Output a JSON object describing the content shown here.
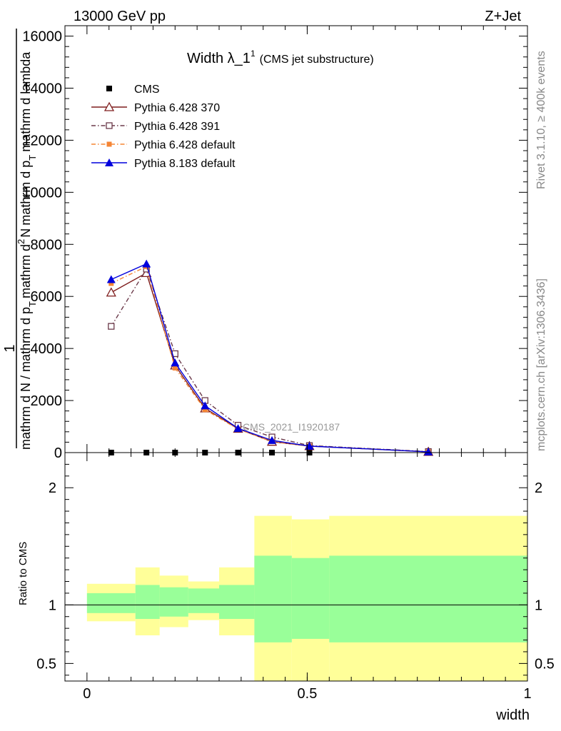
{
  "header": {
    "energy_label": "13000 GeV pp",
    "process_label": "Z+Jet",
    "side_top": "Rivet 3.1.10, ≥ 400k events",
    "side_bottom": "mcplots.cern.ch [arXiv:1306.3436]"
  },
  "chart_data": [
    {
      "type": "line",
      "title": "Width λ_1",
      "title_superscript": "1",
      "subtitle": "(CMS jet substructure)",
      "watermark": "CMS_2021_I1920187",
      "ylabel_parts": [
        "1",
        "mathrm d N / mathrm d p_T",
        "mathrm d^2 N / mathrm d p_T mathrm d lambda"
      ],
      "ylabel_lines": [
        "1",
        "mathrm d N / mathrm d p",
        "T",
        "mathrm d",
        "2",
        "N",
        "mathrm d p",
        "T",
        "mathrm d lambda"
      ],
      "xlim": [
        -0.05,
        1.0
      ],
      "ylim": [
        0,
        16400
      ],
      "yticks": [
        0,
        2000,
        4000,
        6000,
        8000,
        10000,
        12000,
        14000,
        16000
      ],
      "ytick_labels": [
        "0",
        "2000",
        "4000",
        "6000",
        "8000",
        "10000",
        "12000",
        "14000",
        "16000"
      ],
      "series": [
        {
          "name": "CMS",
          "color": "#000000",
          "marker": "square",
          "dash": "none",
          "x": [
            0.055,
            0.135,
            0.2,
            0.268,
            0.343,
            0.42,
            0.505,
            0.775
          ],
          "y": [
            0,
            0,
            0,
            0,
            0,
            0,
            0,
            0
          ]
        },
        {
          "name": "Pythia 6.428 370",
          "color": "#7f1d1d",
          "marker": "triangle-open",
          "dash": "none",
          "x": [
            0.055,
            0.135,
            0.2,
            0.268,
            0.343,
            0.42,
            0.505,
            0.775
          ],
          "y": [
            6150,
            6900,
            3350,
            1700,
            920,
            420,
            250,
            30
          ]
        },
        {
          "name": "Pythia 6.428 391",
          "color": "#6b3a4a",
          "marker": "square-open",
          "dash": "dashdot",
          "x": [
            0.055,
            0.135,
            0.2,
            0.268,
            0.343,
            0.42,
            0.505,
            0.775
          ],
          "y": [
            4850,
            7050,
            3800,
            2000,
            1050,
            600,
            270,
            40
          ]
        },
        {
          "name": "Pythia 6.428 default",
          "color": "#f58534",
          "marker": "square-filled",
          "dash": "dashdot",
          "x": [
            0.055,
            0.135,
            0.2,
            0.268,
            0.343,
            0.42,
            0.505,
            0.775
          ],
          "y": [
            6500,
            7150,
            3250,
            1650,
            900,
            430,
            250,
            30
          ]
        },
        {
          "name": "Pythia 8.183 default",
          "color": "#0000dd",
          "marker": "triangle-filled",
          "dash": "none",
          "x": [
            0.055,
            0.135,
            0.2,
            0.268,
            0.343,
            0.42,
            0.505,
            0.775
          ],
          "y": [
            6650,
            7250,
            3450,
            1800,
            930,
            470,
            250,
            30
          ]
        }
      ]
    },
    {
      "type": "area",
      "ylabel": "Ratio to CMS",
      "xlabel": "width",
      "xlim": [
        -0.05,
        1.0
      ],
      "ylim": [
        0.35,
        2.3
      ],
      "xticks": [
        0,
        0.5,
        1
      ],
      "xtick_labels": [
        "0",
        "0.5",
        "1"
      ],
      "yticks": [
        0.5,
        1,
        2
      ],
      "ytick_labels": [
        "0.5",
        "1",
        "2"
      ],
      "reference_line": 1.0,
      "bin_edges": [
        0.0,
        0.11,
        0.165,
        0.23,
        0.3,
        0.38,
        0.465,
        0.55,
        1.0
      ],
      "band_yellow": [
        {
          "lo": 0.86,
          "hi": 1.18
        },
        {
          "lo": 0.74,
          "hi": 1.32
        },
        {
          "lo": 0.81,
          "hi": 1.25
        },
        {
          "lo": 0.87,
          "hi": 1.2
        },
        {
          "lo": 0.74,
          "hi": 1.32
        },
        {
          "lo": 0.3,
          "hi": 1.76
        },
        {
          "lo": 0.3,
          "hi": 1.73
        },
        {
          "lo": 0.3,
          "hi": 1.76
        }
      ],
      "band_green": [
        {
          "lo": 0.93,
          "hi": 1.1
        },
        {
          "lo": 0.88,
          "hi": 1.17
        },
        {
          "lo": 0.9,
          "hi": 1.15
        },
        {
          "lo": 0.93,
          "hi": 1.14
        },
        {
          "lo": 0.88,
          "hi": 1.17
        },
        {
          "lo": 0.68,
          "hi": 1.42
        },
        {
          "lo": 0.71,
          "hi": 1.4
        },
        {
          "lo": 0.68,
          "hi": 1.42
        }
      ],
      "colors": {
        "yellow": "#ffff99",
        "green": "#99ff99"
      }
    }
  ]
}
